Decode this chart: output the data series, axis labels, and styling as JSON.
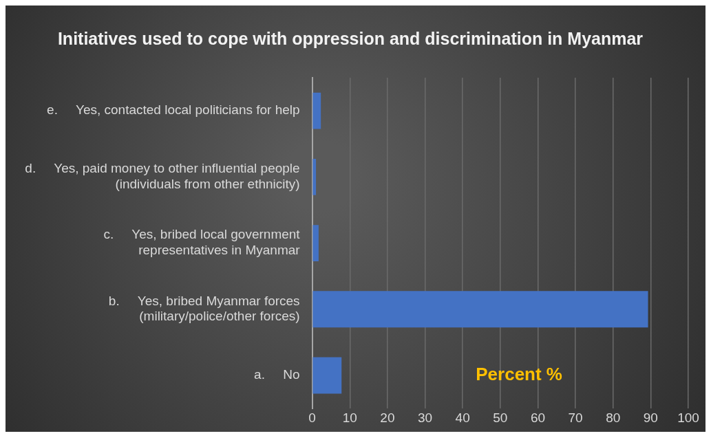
{
  "chart_data": {
    "type": "bar",
    "orientation": "horizontal",
    "title": "Initiatives used to cope with oppression and discrimination in Myanmar",
    "categories": [
      "e.     Yes, contacted local politicians for help",
      "d.     Yes, paid money to other influential people\n(individuals from other ethnicity)",
      "c.     Yes, bribed local government\nrepresentatives in Myanmar",
      "b.     Yes, bribed Myanmar forces\n(military/police/other forces)",
      "a.     No"
    ],
    "values": [
      2.3,
      1.0,
      1.7,
      89.3,
      7.8
    ],
    "color": "#4472c4",
    "xlim": [
      0,
      100
    ],
    "xticks": [
      0,
      10,
      20,
      30,
      40,
      50,
      60,
      70,
      80,
      90,
      100
    ],
    "grid": "x",
    "legend": false,
    "annotations": [
      "Percent %"
    ]
  }
}
